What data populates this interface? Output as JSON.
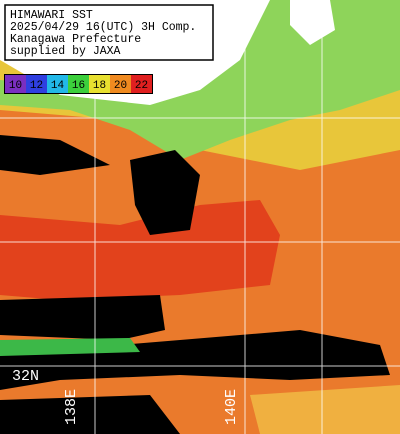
{
  "header": {
    "lines": [
      "HIMAWARI SST",
      "2025/04/29 16(UTC) 3H Comp.",
      "Kanagawa Prefecture",
      "supplied by JAXA"
    ]
  },
  "legend": {
    "items": [
      {
        "label": "10",
        "color": "#7a2fc0"
      },
      {
        "label": "12",
        "color": "#2f3fe0"
      },
      {
        "label": "14",
        "color": "#22b8e8"
      },
      {
        "label": "16",
        "color": "#3ccf3c"
      },
      {
        "label": "18",
        "color": "#e8e030"
      },
      {
        "label": "20",
        "color": "#f08a20"
      },
      {
        "label": "22",
        "color": "#e02020"
      }
    ]
  },
  "grid_labels": {
    "lat": "32N",
    "lon1": "138E",
    "lon2": "140E"
  }
}
